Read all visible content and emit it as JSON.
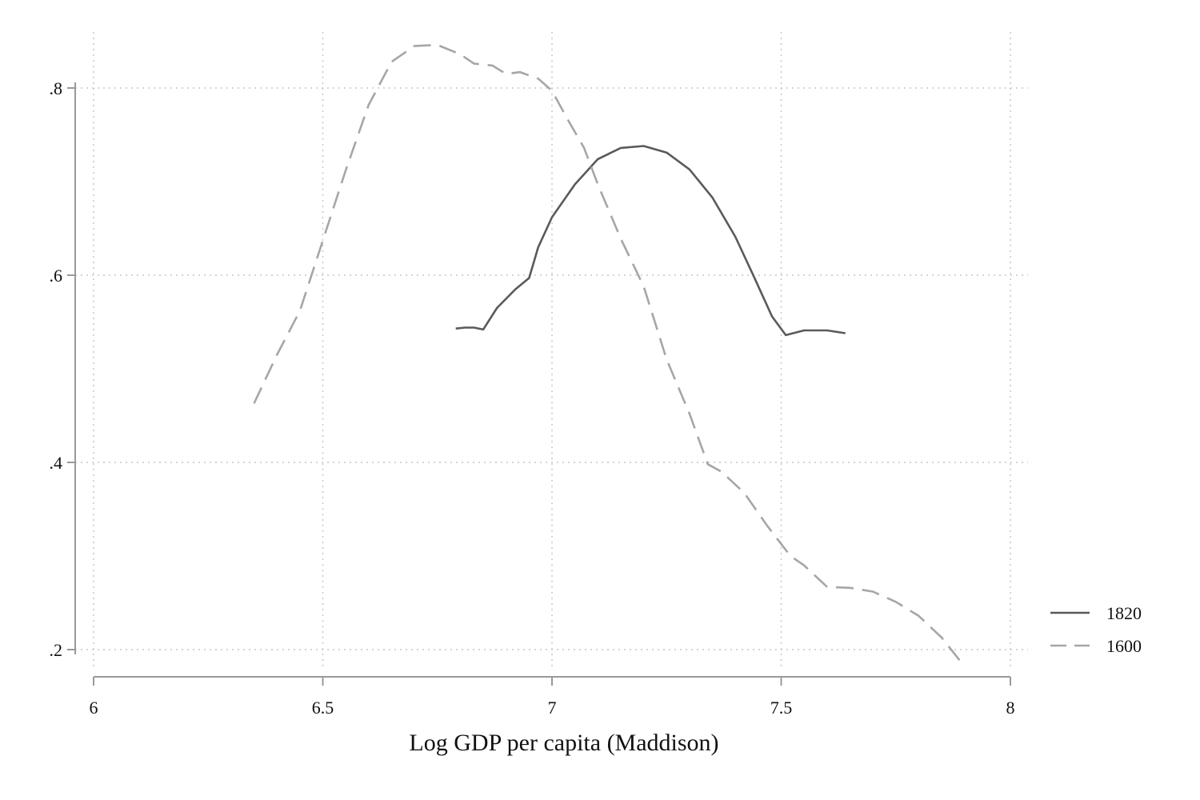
{
  "chart_data": {
    "type": "line",
    "title": "",
    "xlabel": "Log GDP per capita (Maddison)",
    "ylabel": "",
    "xlim": [
      6,
      8
    ],
    "ylim": [
      0.18,
      0.86
    ],
    "x_ticks": [
      6,
      6.5,
      7,
      7.5,
      8
    ],
    "x_tick_labels": [
      "6",
      "6.5",
      "7",
      "7.5",
      "8"
    ],
    "y_ticks": [
      0.2,
      0.4,
      0.6,
      0.8
    ],
    "y_tick_labels": [
      ".2",
      ".4",
      ".6",
      ".8"
    ],
    "grid": true,
    "legend_position": "bottom-right",
    "series": [
      {
        "name": "1820",
        "color": "#5a5a5a",
        "dash": "solid",
        "x": [
          6.79,
          6.81,
          6.83,
          6.85,
          6.88,
          6.92,
          6.95,
          6.97,
          7.0,
          7.05,
          7.1,
          7.15,
          7.2,
          7.25,
          7.3,
          7.35,
          7.4,
          7.44,
          7.48,
          7.51,
          7.55,
          7.6,
          7.64
        ],
        "y": [
          0.543,
          0.544,
          0.544,
          0.542,
          0.565,
          0.585,
          0.597,
          0.63,
          0.662,
          0.697,
          0.724,
          0.736,
          0.738,
          0.731,
          0.713,
          0.683,
          0.641,
          0.599,
          0.556,
          0.536,
          0.541,
          0.541,
          0.538
        ]
      },
      {
        "name": "1600",
        "color": "#a6a6a6",
        "dash": "dashed",
        "x": [
          6.35,
          6.4,
          6.45,
          6.5,
          6.55,
          6.6,
          6.65,
          6.7,
          6.75,
          6.8,
          6.83,
          6.87,
          6.9,
          6.93,
          6.97,
          7.0,
          7.03,
          7.07,
          7.1,
          7.15,
          7.2,
          7.25,
          7.3,
          7.34,
          7.37,
          7.42,
          7.47,
          7.52,
          7.55,
          7.6,
          7.65,
          7.7,
          7.75,
          7.8,
          7.85,
          7.89
        ],
        "y": [
          0.463,
          0.515,
          0.562,
          0.637,
          0.712,
          0.782,
          0.828,
          0.845,
          0.846,
          0.836,
          0.826,
          0.824,
          0.815,
          0.817,
          0.81,
          0.797,
          0.77,
          0.736,
          0.697,
          0.639,
          0.588,
          0.51,
          0.452,
          0.398,
          0.39,
          0.367,
          0.332,
          0.3,
          0.29,
          0.267,
          0.266,
          0.262,
          0.251,
          0.236,
          0.213,
          0.188
        ]
      }
    ]
  }
}
